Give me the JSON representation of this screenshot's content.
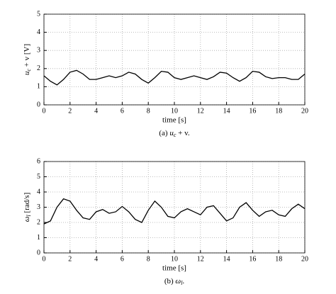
{
  "chart_data": [
    {
      "type": "line",
      "color": "#000000",
      "grid": true,
      "ylabel": [
        "u",
        "c",
        " + v [V]"
      ],
      "xlabel": "time [s]",
      "caption": [
        "(a) ",
        "u",
        "c",
        " + v."
      ],
      "xlim": [
        0,
        20
      ],
      "xticks": [
        0,
        2,
        4,
        6,
        8,
        10,
        12,
        14,
        16,
        18,
        20
      ],
      "ylim": [
        0,
        5
      ],
      "yticks": [
        0,
        1,
        2,
        3,
        4,
        5
      ],
      "x": [
        0,
        0.5,
        1,
        1.5,
        2,
        2.5,
        3,
        3.5,
        4,
        4.5,
        5,
        5.5,
        6,
        6.5,
        7,
        7.5,
        8,
        8.5,
        9,
        9.5,
        10,
        10.5,
        11,
        11.5,
        12,
        12.5,
        13,
        13.5,
        14,
        14.5,
        15,
        15.5,
        16,
        16.5,
        17,
        17.5,
        18,
        18.5,
        19,
        19.5,
        20
      ],
      "values": [
        1.6,
        1.3,
        1.1,
        1.4,
        1.8,
        1.9,
        1.7,
        1.4,
        1.4,
        1.5,
        1.6,
        1.5,
        1.6,
        1.8,
        1.7,
        1.4,
        1.2,
        1.5,
        1.85,
        1.8,
        1.5,
        1.4,
        1.5,
        1.6,
        1.5,
        1.4,
        1.55,
        1.8,
        1.75,
        1.5,
        1.3,
        1.5,
        1.85,
        1.8,
        1.55,
        1.45,
        1.5,
        1.5,
        1.4,
        1.4,
        1.7
      ]
    },
    {
      "type": "line",
      "color": "#000000",
      "grid": true,
      "ylabel": [
        "ω",
        "l",
        " [rad/s]"
      ],
      "xlabel": "time [s]",
      "caption": [
        "(b) ",
        "ω",
        "l",
        "."
      ],
      "xlim": [
        0,
        20
      ],
      "xticks": [
        0,
        2,
        4,
        6,
        8,
        10,
        12,
        14,
        16,
        18,
        20
      ],
      "ylim": [
        0,
        6
      ],
      "yticks": [
        0,
        1,
        2,
        3,
        4,
        5,
        6
      ],
      "x": [
        0,
        0.5,
        1,
        1.5,
        2,
        2.5,
        3,
        3.5,
        4,
        4.5,
        5,
        5.5,
        6,
        6.5,
        7,
        7.5,
        8,
        8.5,
        9,
        9.5,
        10,
        10.5,
        11,
        11.5,
        12,
        12.5,
        13,
        13.5,
        14,
        14.5,
        15,
        15.5,
        16,
        16.5,
        17,
        17.5,
        18,
        18.5,
        19,
        19.5,
        20
      ],
      "values": [
        1.9,
        2.1,
        3.0,
        3.55,
        3.4,
        2.8,
        2.3,
        2.2,
        2.7,
        2.85,
        2.6,
        2.7,
        3.05,
        2.7,
        2.2,
        2.0,
        2.8,
        3.4,
        3.0,
        2.4,
        2.3,
        2.7,
        2.9,
        2.7,
        2.5,
        3.0,
        3.1,
        2.6,
        2.1,
        2.3,
        3.0,
        3.3,
        2.8,
        2.4,
        2.7,
        2.8,
        2.5,
        2.4,
        2.9,
        3.2,
        2.9
      ]
    }
  ]
}
